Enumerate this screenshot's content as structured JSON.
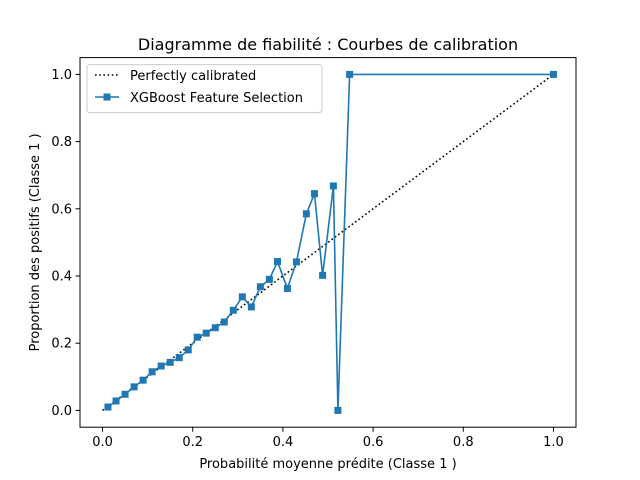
{
  "chart_data": {
    "type": "line",
    "title": "Diagramme de fiabilité : Courbes de calibration",
    "xlabel": "Probabilité moyenne prédite (Classe 1 )",
    "ylabel": "Proportion des positifs (Classe 1 )",
    "xlim": [
      -0.05,
      1.05
    ],
    "ylim": [
      -0.05,
      1.05
    ],
    "xticks": [
      "0.0",
      "0.2",
      "0.4",
      "0.6",
      "0.8",
      "1.0"
    ],
    "yticks": [
      "0.0",
      "0.2",
      "0.4",
      "0.6",
      "0.8",
      "1.0"
    ],
    "grid": false,
    "legend_position": "top-left",
    "series": [
      {
        "name": "Perfectly calibrated",
        "style": "dotted",
        "color": "#000000",
        "x": [
          0.0,
          1.0
        ],
        "y": [
          0.0,
          1.0
        ]
      },
      {
        "name": "XGBoost Feature Selection",
        "style": "solid",
        "marker": "square",
        "color": "#1f77b4",
        "x": [
          0.012,
          0.03,
          0.05,
          0.07,
          0.09,
          0.11,
          0.13,
          0.15,
          0.17,
          0.19,
          0.21,
          0.23,
          0.25,
          0.27,
          0.29,
          0.31,
          0.33,
          0.35,
          0.37,
          0.388,
          0.41,
          0.43,
          0.452,
          0.47,
          0.488,
          0.512,
          0.522,
          0.548,
          1.0
        ],
        "y": [
          0.01,
          0.028,
          0.048,
          0.07,
          0.09,
          0.115,
          0.132,
          0.143,
          0.157,
          0.18,
          0.218,
          0.23,
          0.246,
          0.263,
          0.298,
          0.338,
          0.308,
          0.368,
          0.39,
          0.443,
          0.363,
          0.442,
          0.585,
          0.645,
          0.402,
          0.668,
          0.0,
          1.0,
          1.0
        ]
      }
    ]
  }
}
